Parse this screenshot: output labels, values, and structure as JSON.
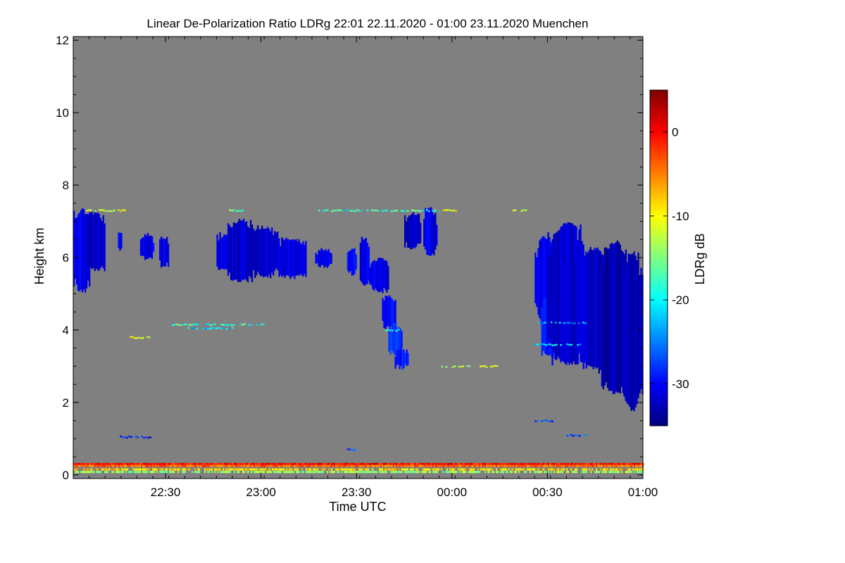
{
  "chart_data": {
    "type": "heatmap",
    "title": "Linear De-Polarization Ratio LDRg   22:01 22.11.2020 - 01:00 23.11.2020 Muenchen",
    "xlabel": "Time UTC",
    "ylabel": "Height km",
    "colorbar_label": "LDRg dB",
    "x_range_minutes": [
      1321,
      1500
    ],
    "y_range_km": [
      -0.1,
      12.1
    ],
    "color_range_db": [
      -35,
      5
    ],
    "background_color": "#808080",
    "x_ticks": [
      {
        "t": 1350,
        "label": "22:30"
      },
      {
        "t": 1380,
        "label": "23:00"
      },
      {
        "t": 1410,
        "label": "23:30"
      },
      {
        "t": 1440,
        "label": "00:00"
      },
      {
        "t": 1470,
        "label": "00:30"
      },
      {
        "t": 1500,
        "label": "01:00"
      }
    ],
    "y_ticks": [
      {
        "v": 0,
        "label": "0"
      },
      {
        "v": 2,
        "label": "2"
      },
      {
        "v": 4,
        "label": "4"
      },
      {
        "v": 6,
        "label": "6"
      },
      {
        "v": 8,
        "label": "8"
      },
      {
        "v": 10,
        "label": "10"
      },
      {
        "v": 12,
        "label": "12"
      }
    ],
    "colorbar_ticks": [
      {
        "v": 0,
        "label": "0"
      },
      {
        "v": -10,
        "label": "-10"
      },
      {
        "v": -20,
        "label": "-20"
      },
      {
        "v": -30,
        "label": "-30"
      }
    ],
    "colormap_stops": [
      "#00007f",
      "#0000ff",
      "#007fff",
      "#00ffff",
      "#7fff7f",
      "#ffff00",
      "#ff7f00",
      "#ff0000",
      "#7f0000"
    ],
    "cloud_regions": [
      {
        "t0": 1321,
        "t1": 1326,
        "h0": 5.0,
        "h1": 7.4,
        "ldr": -31
      },
      {
        "t0": 1324,
        "t1": 1331,
        "h0": 5.6,
        "h1": 7.3,
        "ldr": -32
      },
      {
        "t0": 1335,
        "t1": 1336,
        "h0": 6.1,
        "h1": 6.8,
        "ldr": -30
      },
      {
        "t0": 1342,
        "t1": 1346,
        "h0": 5.9,
        "h1": 6.7,
        "ldr": -31
      },
      {
        "t0": 1348,
        "t1": 1351,
        "h0": 5.7,
        "h1": 6.6,
        "ldr": -31
      },
      {
        "t0": 1366,
        "t1": 1371,
        "h0": 5.6,
        "h1": 6.7,
        "ldr": -31
      },
      {
        "t0": 1369,
        "t1": 1378,
        "h0": 5.3,
        "h1": 7.1,
        "ldr": -32
      },
      {
        "t0": 1377,
        "t1": 1385,
        "h0": 5.4,
        "h1": 6.9,
        "ldr": -32
      },
      {
        "t0": 1385,
        "t1": 1394,
        "h0": 5.4,
        "h1": 6.6,
        "ldr": -31
      },
      {
        "t0": 1397,
        "t1": 1402,
        "h0": 5.7,
        "h1": 6.3,
        "ldr": -31
      },
      {
        "t0": 1407,
        "t1": 1410,
        "h0": 5.5,
        "h1": 6.3,
        "ldr": -30
      },
      {
        "t0": 1411,
        "t1": 1414,
        "h0": 5.2,
        "h1": 6.6,
        "ldr": -31
      },
      {
        "t0": 1414,
        "t1": 1420,
        "h0": 5.0,
        "h1": 6.0,
        "ldr": -31
      },
      {
        "t0": 1418,
        "t1": 1422,
        "h0": 4.0,
        "h1": 5.0,
        "ldr": -30
      },
      {
        "t0": 1420,
        "t1": 1424,
        "h0": 3.3,
        "h1": 4.2,
        "ldr": -28
      },
      {
        "t0": 1422,
        "t1": 1426,
        "h0": 2.9,
        "h1": 3.5,
        "ldr": -29
      },
      {
        "t0": 1425,
        "t1": 1430,
        "h0": 6.2,
        "h1": 7.3,
        "ldr": -32
      },
      {
        "t0": 1431,
        "t1": 1435,
        "h0": 6.0,
        "h1": 7.4,
        "ldr": -31
      },
      {
        "t0": 1466,
        "t1": 1472,
        "h0": 4.2,
        "h1": 6.6,
        "ldr": -31
      },
      {
        "t0": 1468,
        "t1": 1474,
        "h0": 3.2,
        "h1": 5.0,
        "ldr": -29
      },
      {
        "t0": 1470,
        "t1": 1482,
        "h0": 3.0,
        "h1": 7.0,
        "ldr": -32
      },
      {
        "t0": 1478,
        "t1": 1490,
        "h0": 2.9,
        "h1": 6.3,
        "ldr": -32
      },
      {
        "t0": 1486,
        "t1": 1496,
        "h0": 2.2,
        "h1": 6.5,
        "ldr": -33
      },
      {
        "t0": 1493,
        "t1": 1500,
        "h0": 1.7,
        "h1": 6.2,
        "ldr": -33
      }
    ],
    "speckle_lines": [
      {
        "t0": 1325,
        "t1": 1337,
        "h": 7.3,
        "ldr": -12
      },
      {
        "t0": 1370,
        "t1": 1374,
        "h": 7.3,
        "ldr": -16
      },
      {
        "t0": 1398,
        "t1": 1436,
        "h": 7.3,
        "ldr": -18
      },
      {
        "t0": 1437,
        "t1": 1441,
        "h": 7.3,
        "ldr": -10
      },
      {
        "t0": 1459,
        "t1": 1463,
        "h": 7.3,
        "ldr": -12
      },
      {
        "t0": 1352,
        "t1": 1381,
        "h": 4.15,
        "ldr": -18
      },
      {
        "t0": 1357,
        "t1": 1371,
        "h": 4.05,
        "ldr": -22
      },
      {
        "t0": 1338,
        "t1": 1346,
        "h": 3.8,
        "ldr": -10
      },
      {
        "t0": 1436,
        "t1": 1446,
        "h": 3.0,
        "ldr": -12
      },
      {
        "t0": 1448,
        "t1": 1454,
        "h": 3.0,
        "ldr": -11
      },
      {
        "t0": 1466,
        "t1": 1480,
        "h": 3.6,
        "ldr": -20
      },
      {
        "t0": 1467,
        "t1": 1482,
        "h": 4.2,
        "ldr": -24
      },
      {
        "t0": 1419,
        "t1": 1424,
        "h": 4.0,
        "ldr": -20
      },
      {
        "t0": 1335,
        "t1": 1345,
        "h": 1.05,
        "ldr": -30
      },
      {
        "t0": 1407,
        "t1": 1411,
        "h": 0.7,
        "ldr": -28
      },
      {
        "t0": 1476,
        "t1": 1482,
        "h": 1.1,
        "ldr": -28
      },
      {
        "t0": 1466,
        "t1": 1472,
        "h": 1.5,
        "ldr": -26
      }
    ],
    "ground_layers": [
      {
        "h": 0.3,
        "ldr": 0
      },
      {
        "h": 0.25,
        "ldr": -4
      },
      {
        "h": 0.15,
        "ldr": -9
      },
      {
        "h": 0.08,
        "ldr": -14
      }
    ]
  }
}
